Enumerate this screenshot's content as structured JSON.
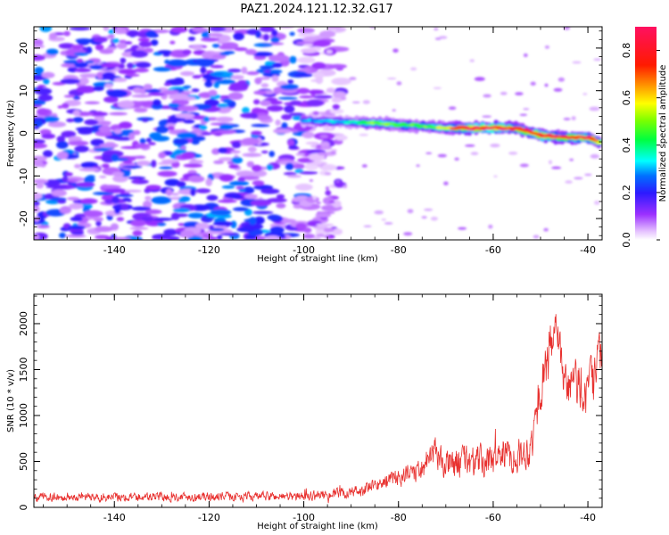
{
  "title": "PAZ1.2024.121.12.32.G17",
  "chart_data": [
    {
      "type": "heatmap",
      "xlabel": "Height of straight line (km)",
      "ylabel": "Frequency (Hz)",
      "xlim": [
        -157,
        -37
      ],
      "ylim": [
        -25,
        25
      ],
      "x_ticks": [
        -140,
        -120,
        -100,
        -80,
        -60,
        -40
      ],
      "y_ticks": [
        -20,
        -10,
        0,
        10,
        20
      ],
      "colorbar": {
        "label": "Normalized spectral amplitude",
        "range": [
          0,
          0.9
        ],
        "ticks": [
          0.0,
          0.2,
          0.4,
          0.6,
          0.8
        ],
        "colormap": "gist_rainbow_r"
      },
      "signal_track": {
        "x": [
          -100,
          -90,
          -85,
          -80,
          -75,
          -70,
          -65,
          -60,
          -55,
          -50,
          -45,
          -40,
          -37
        ],
        "frequency": [
          3,
          2.6,
          2.4,
          2.0,
          1.7,
          1.3,
          1.2,
          1.3,
          1.2,
          -0.5,
          -1,
          -1,
          -2.5
        ],
        "amplitude": [
          0.3,
          0.35,
          0.55,
          0.5,
          0.45,
          0.6,
          0.85,
          0.9,
          0.75,
          0.85,
          0.8,
          0.85,
          0.6
        ]
      },
      "background_noise": {
        "x_range": [
          -157,
          -100
        ],
        "amplitude_range": [
          0.05,
          0.3
        ]
      }
    },
    {
      "type": "line",
      "xlabel": "Height of straight line (km)",
      "ylabel": "SNR (10 * v/v)",
      "xlim": [
        -157,
        -37
      ],
      "ylim": [
        0,
        2320
      ],
      "x_ticks": [
        -140,
        -120,
        -100,
        -80,
        -60,
        -40
      ],
      "y_ticks": [
        0,
        500,
        1000,
        1500,
        2000
      ],
      "color": "#e8312f",
      "envelope": {
        "x": [
          -157,
          -100,
          -90,
          -85,
          -82,
          -78,
          -75,
          -73,
          -70,
          -66,
          -62,
          -58,
          -55,
          -52,
          -50,
          -48,
          -47,
          -45,
          -42,
          -40,
          -38,
          -37
        ],
        "mean": [
          110,
          120,
          160,
          230,
          300,
          350,
          420,
          650,
          450,
          520,
          480,
          600,
          550,
          650,
          1300,
          1700,
          2000,
          1300,
          1350,
          1250,
          1500,
          1650
        ],
        "spread": [
          60,
          60,
          80,
          90,
          110,
          140,
          160,
          200,
          200,
          220,
          220,
          220,
          220,
          250,
          300,
          350,
          320,
          320,
          350,
          350,
          400,
          300
        ]
      }
    }
  ]
}
